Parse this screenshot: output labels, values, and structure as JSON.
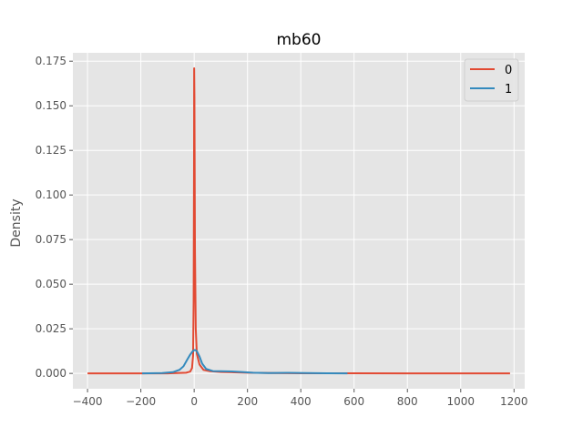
{
  "chart_data": {
    "type": "line",
    "title": "mb60",
    "xlabel": "",
    "ylabel": "Density",
    "xlim": [
      -455,
      1240
    ],
    "ylim": [
      -0.0086,
      0.1797
    ],
    "xticks": [
      -400,
      -200,
      0,
      200,
      400,
      600,
      800,
      1000,
      1200
    ],
    "yticks": [
      0.0,
      0.025,
      0.05,
      0.075,
      0.1,
      0.125,
      0.15,
      0.175
    ],
    "ytick_labels": [
      "0.000",
      "0.025",
      "0.050",
      "0.075",
      "0.100",
      "0.125",
      "0.150",
      "0.175"
    ],
    "grid": true,
    "legend_position": "top-right",
    "series": [
      {
        "name": "0",
        "color": "#E24A33",
        "points": [
          [
            -400,
            0
          ],
          [
            -100,
            0
          ],
          [
            -30,
            0.0004
          ],
          [
            -15,
            0.001
          ],
          [
            -8,
            0.003
          ],
          [
            -4,
            0.01
          ],
          [
            -2,
            0.04
          ],
          [
            -0.5,
            0.12
          ],
          [
            0,
            0.171
          ],
          [
            1,
            0.155
          ],
          [
            3,
            0.07
          ],
          [
            6,
            0.025
          ],
          [
            10,
            0.011
          ],
          [
            20,
            0.005
          ],
          [
            35,
            0.002
          ],
          [
            60,
            0.0012
          ],
          [
            100,
            0.0008
          ],
          [
            150,
            0.0006
          ],
          [
            200,
            0.0004
          ],
          [
            300,
            0.0002
          ],
          [
            400,
            0.0001
          ],
          [
            600,
            5e-05
          ],
          [
            800,
            0
          ],
          [
            1000,
            0
          ],
          [
            1185,
            0
          ]
        ]
      },
      {
        "name": "1",
        "color": "#348ABD",
        "points": [
          [
            -195,
            0
          ],
          [
            -120,
            0.0002
          ],
          [
            -80,
            0.0007
          ],
          [
            -55,
            0.002
          ],
          [
            -40,
            0.004
          ],
          [
            -25,
            0.008
          ],
          [
            -15,
            0.0105
          ],
          [
            -5,
            0.0125
          ],
          [
            3,
            0.0132
          ],
          [
            10,
            0.0125
          ],
          [
            20,
            0.0095
          ],
          [
            30,
            0.0055
          ],
          [
            45,
            0.0025
          ],
          [
            70,
            0.0013
          ],
          [
            100,
            0.0012
          ],
          [
            140,
            0.0011
          ],
          [
            180,
            0.0008
          ],
          [
            220,
            0.0004
          ],
          [
            280,
            0.0002
          ],
          [
            350,
            0.0003
          ],
          [
            420,
            0.0002
          ],
          [
            500,
            0.0001
          ],
          [
            575,
            0
          ]
        ]
      }
    ]
  }
}
